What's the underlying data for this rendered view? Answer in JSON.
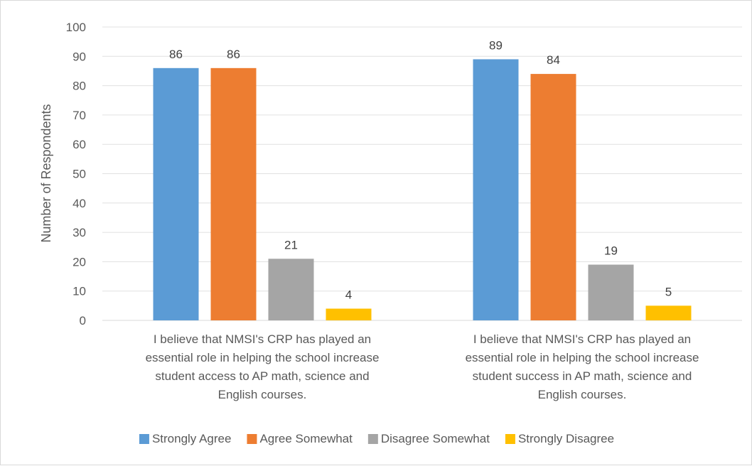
{
  "chart_data": {
    "type": "bar",
    "title": "",
    "xlabel": "",
    "ylabel": "Number of Respondents",
    "ylim": [
      0,
      100
    ],
    "ytick_step": 10,
    "grid": true,
    "legend_position": "bottom",
    "categories": [
      [
        "I believe that NMSI's CRP has played an",
        "essential role in helping the school increase",
        "student access to AP math, science and",
        "English courses."
      ],
      [
        "I believe that NMSI's CRP has played an",
        "essential role in helping the school increase",
        "student success in AP math, science and",
        "English courses."
      ]
    ],
    "series": [
      {
        "name": "Strongly Agree",
        "color": "#5b9bd5",
        "values": [
          86,
          89
        ]
      },
      {
        "name": "Agree Somewhat",
        "color": "#ed7d31",
        "values": [
          86,
          84
        ]
      },
      {
        "name": "Disagree Somewhat",
        "color": "#a5a5a5",
        "values": [
          21,
          19
        ]
      },
      {
        "name": "Strongly Disagree",
        "color": "#ffc000",
        "values": [
          4,
          5
        ]
      }
    ]
  }
}
